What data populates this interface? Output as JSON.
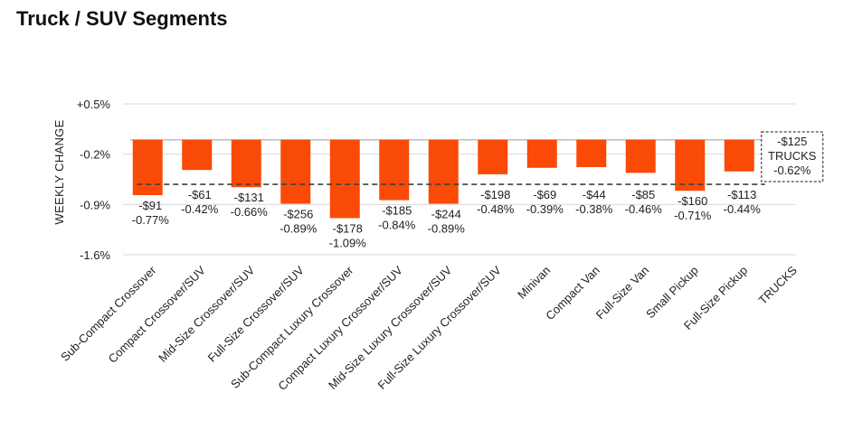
{
  "title": "Truck / SUV Segments",
  "colors": {
    "bar": "#fa4a07",
    "gridline": "#d9d9d9",
    "zero_line": "#bfbfbf",
    "average_line": "#404040"
  },
  "chart_data": {
    "type": "bar",
    "title": "Truck / SUV Segments",
    "ylabel": "WEEKLY CHANGE",
    "xlabel": "",
    "ylim": [
      -1.6,
      0.5
    ],
    "yticks": [
      0.5,
      -0.2,
      -0.9,
      -1.6
    ],
    "ytick_labels": [
      "+0.5%",
      "-0.2%",
      "-0.9%",
      "-1.6%"
    ],
    "grid": true,
    "categories": [
      "Sub-Compact Crossover",
      "Compact Crossover/SUV",
      "Mid-Size Crossover/SUV",
      "Full-Size Crossover/SUV",
      "Sub-Compact Luxury Crossover",
      "Compact Luxury Crossover/SUV",
      "Mid-Size Luxury Crossover/SUV",
      "Full-Size Luxury Crossover/SUV",
      "Minivan",
      "Compact Van",
      "Full-Size Van",
      "Small Pickup",
      "Full-Size Pickup",
      "TRUCKS"
    ],
    "series": [
      {
        "name": "Weekly change",
        "values": [
          -0.77,
          -0.42,
          -0.66,
          -0.89,
          -1.09,
          -0.84,
          -0.89,
          -0.48,
          -0.39,
          -0.38,
          -0.46,
          -0.71,
          -0.44,
          null
        ]
      }
    ],
    "dollar_labels": [
      "-$91",
      "-$61",
      "-$131",
      "-$256",
      "-$178",
      "-$185",
      "-$244",
      "-$198",
      "-$69",
      "-$44",
      "-$85",
      "-$160",
      "-$113",
      "-$125"
    ],
    "percent_labels": [
      "-0.77%",
      "-0.42%",
      "-0.66%",
      "-0.89%",
      "-1.09%",
      "-0.84%",
      "-0.89%",
      "-0.48%",
      "-0.39%",
      "-0.38%",
      "-0.46%",
      "-0.71%",
      "-0.44%",
      "-0.62%"
    ],
    "average": {
      "name": "TRUCKS",
      "value": -0.62,
      "dollar_label": "-$125",
      "name_label": "TRUCKS",
      "percent_label": "-0.62%"
    }
  }
}
